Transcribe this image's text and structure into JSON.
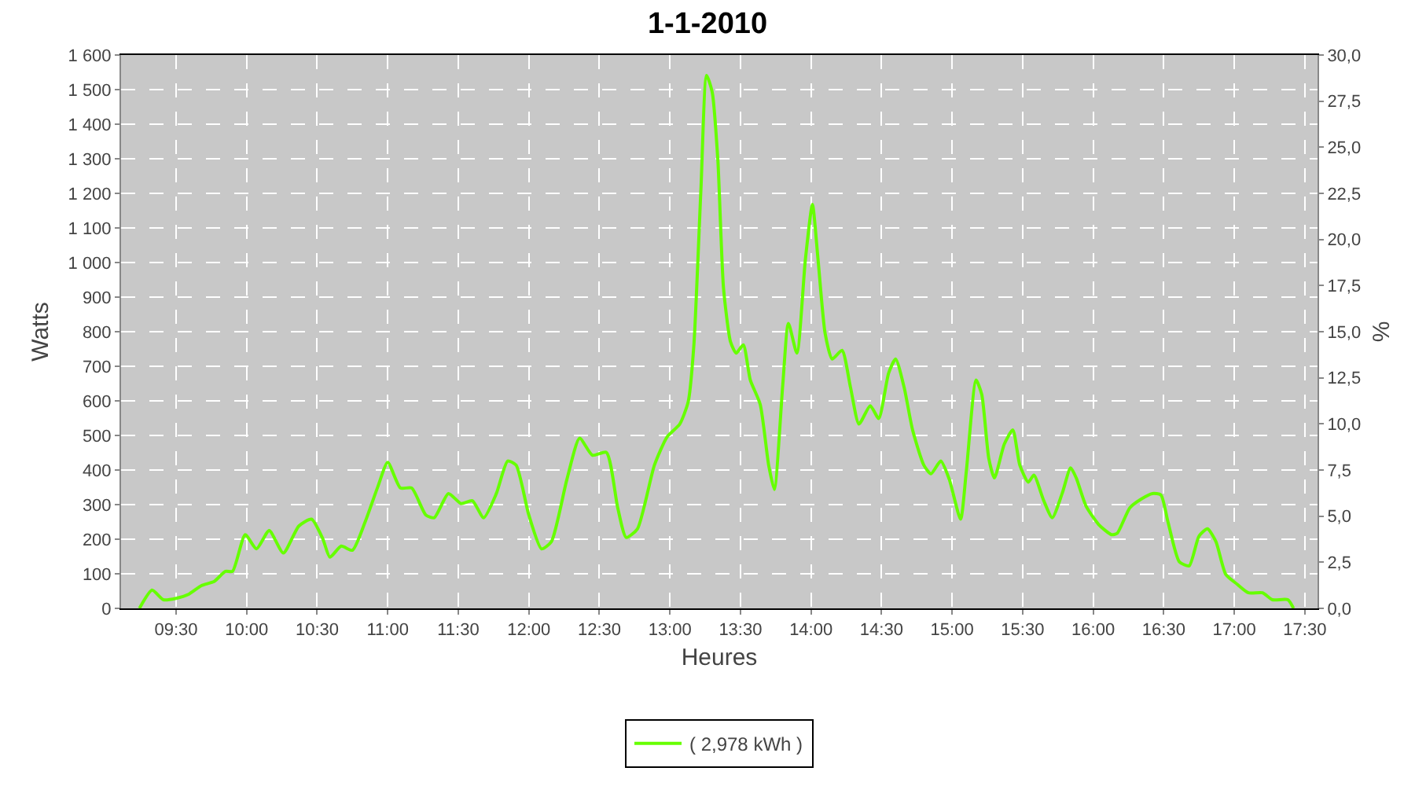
{
  "chart_data": {
    "type": "line",
    "title": "1-1-2010",
    "xlabel": "Heures",
    "ylabel": "Watts",
    "y2label": "%",
    "x": [
      9.24,
      9.33,
      9.41,
      9.5,
      9.59,
      9.68,
      9.77,
      9.85,
      9.9,
      9.99,
      10.07,
      10.16,
      10.26,
      10.37,
      10.46,
      10.54,
      10.59,
      10.67,
      10.75,
      10.84,
      10.93,
      11.0,
      11.09,
      11.17,
      11.27,
      11.33,
      11.43,
      11.52,
      11.6,
      11.68,
      11.77,
      11.85,
      11.91,
      12.0,
      12.09,
      12.16,
      12.27,
      12.36,
      12.45,
      12.55,
      12.63,
      12.69,
      12.77,
      12.89,
      12.98,
      13.07,
      13.13,
      13.17,
      13.22,
      13.26,
      13.3,
      13.34,
      13.38,
      13.43,
      13.47,
      13.52,
      13.57,
      13.64,
      13.7,
      13.74,
      13.8,
      13.84,
      13.9,
      13.96,
      14.01,
      14.05,
      14.1,
      14.15,
      14.22,
      14.28,
      14.34,
      14.42,
      14.48,
      14.55,
      14.6,
      14.66,
      14.72,
      14.8,
      14.85,
      14.92,
      14.98,
      15.06,
      15.1,
      15.17,
      15.21,
      15.26,
      15.3,
      15.37,
      15.43,
      15.48,
      15.54,
      15.58,
      15.65,
      15.71,
      15.78,
      15.84,
      15.88,
      15.95,
      16.04,
      16.13,
      16.17,
      16.26,
      16.34,
      16.42,
      16.48,
      16.53,
      16.61,
      16.68,
      16.75,
      16.81,
      16.87,
      16.94,
      17.02,
      17.1,
      17.2,
      17.27,
      17.38,
      17.42
    ],
    "series": [
      {
        "name": "( 2,978 kWh )",
        "color": "#66ff00",
        "values": [
          0,
          53,
          25,
          29,
          41,
          66,
          78,
          107,
          107,
          213,
          172,
          225,
          160,
          238,
          258,
          201,
          148,
          180,
          168,
          250,
          352,
          422,
          348,
          348,
          270,
          262,
          332,
          303,
          311,
          262,
          332,
          426,
          414,
          270,
          172,
          193,
          373,
          492,
          443,
          451,
          291,
          205,
          230,
          414,
          496,
          533,
          598,
          762,
          1213,
          1541,
          1492,
          1295,
          926,
          770,
          738,
          762,
          660,
          590,
          414,
          344,
          647,
          824,
          738,
          1008,
          1168,
          1008,
          795,
          721,
          746,
          639,
          533,
          586,
          549,
          680,
          721,
          639,
          516,
          414,
          389,
          426,
          373,
          258,
          393,
          660,
          619,
          434,
          377,
          475,
          516,
          414,
          365,
          385,
          311,
          262,
          332,
          406,
          377,
          295,
          242,
          213,
          217,
          291,
          316,
          332,
          328,
          250,
          135,
          123,
          209,
          230,
          193,
          98,
          70,
          45,
          45,
          25,
          25,
          0
        ]
      }
    ],
    "xlim": [
      9.11,
      17.59
    ],
    "xticks": [
      {
        "value": 9.5,
        "label": "09:30"
      },
      {
        "value": 10,
        "label": "10:00"
      },
      {
        "value": 10.5,
        "label": "10:30"
      },
      {
        "value": 11,
        "label": "11:00"
      },
      {
        "value": 11.5,
        "label": "11:30"
      },
      {
        "value": 12,
        "label": "12:00"
      },
      {
        "value": 12.5,
        "label": "12:30"
      },
      {
        "value": 13,
        "label": "13:00"
      },
      {
        "value": 13.5,
        "label": "13:30"
      },
      {
        "value": 14,
        "label": "14:00"
      },
      {
        "value": 14.5,
        "label": "14:30"
      },
      {
        "value": 15,
        "label": "15:00"
      },
      {
        "value": 15.5,
        "label": "15:30"
      },
      {
        "value": 16,
        "label": "16:00"
      },
      {
        "value": 16.5,
        "label": "16:30"
      },
      {
        "value": 17,
        "label": "17:00"
      },
      {
        "value": 17.5,
        "label": "17:30"
      }
    ],
    "ylim": [
      0,
      1600
    ],
    "yticks": [
      0,
      100,
      200,
      300,
      400,
      500,
      600,
      700,
      800,
      900,
      {
        "value": 1000,
        "label": "1 000"
      },
      {
        "value": 1100,
        "label": "1 100"
      },
      {
        "value": 1200,
        "label": "1 200"
      },
      {
        "value": 1300,
        "label": "1 300"
      },
      {
        "value": 1400,
        "label": "1 400"
      },
      {
        "value": 1500,
        "label": "1 500"
      },
      {
        "value": 1600,
        "label": "1 600"
      }
    ],
    "y2lim": [
      0,
      30
    ],
    "y2ticks": [
      {
        "value": 0,
        "label": "0,0"
      },
      {
        "value": 2.5,
        "label": "2,5"
      },
      {
        "value": 5,
        "label": "5,0"
      },
      {
        "value": 7.5,
        "label": "7,5"
      },
      {
        "value": 10,
        "label": "10,0"
      },
      {
        "value": 12.5,
        "label": "12,5"
      },
      {
        "value": 15,
        "label": "15,0"
      },
      {
        "value": 17.5,
        "label": "17,5"
      },
      {
        "value": 20,
        "label": "20,0"
      },
      {
        "value": 22.5,
        "label": "22,5"
      },
      {
        "value": 25,
        "label": "25,0"
      },
      {
        "value": 27.5,
        "label": "27,5"
      },
      {
        "value": 30,
        "label": "30,0"
      }
    ],
    "grid": true,
    "legend": "bottom",
    "marker": "none",
    "line_style": "solid"
  }
}
